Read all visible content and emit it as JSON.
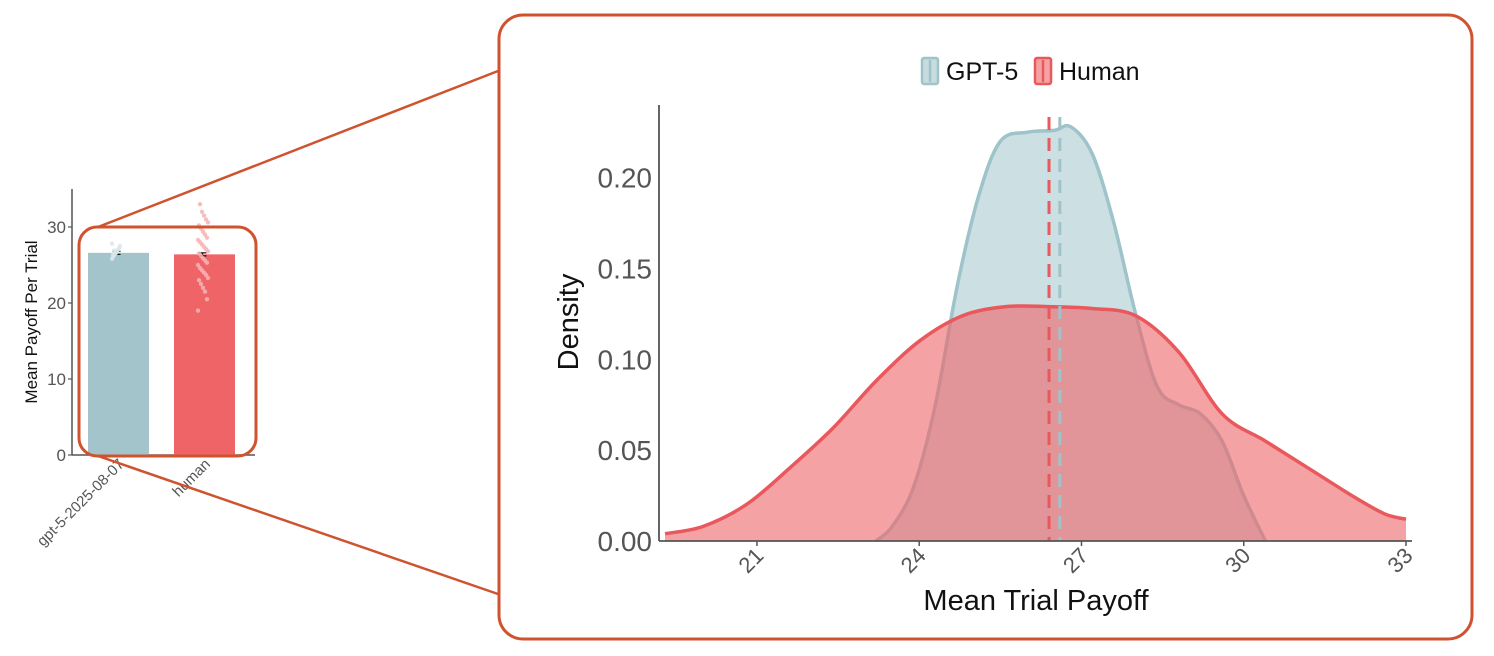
{
  "colors": {
    "gpt": "#a3c4cb",
    "human": "#ee6467",
    "gpt_line": "#9fc3ca",
    "human_line": "#e8585c",
    "frame": "#cf532f",
    "axis": "#555555",
    "tick_text": "#555555"
  },
  "chart_data": [
    {
      "type": "bar",
      "ylabel": "Mean Payoff Per Trial",
      "xlabel": "",
      "categories": [
        "gpt-5-2025-08-07",
        "human"
      ],
      "values": [
        26.6,
        26.4
      ],
      "errors": [
        0.2,
        0.2
      ],
      "ylim": [
        0,
        35
      ],
      "yticks": [
        "0",
        "10",
        "20",
        "30"
      ],
      "ytick_values": [
        0,
        10,
        20,
        30
      ],
      "gpt_points": [
        25.8,
        26.1,
        26.3,
        26.5,
        26.6,
        26.8,
        27.0,
        27.2,
        27.5,
        27.8,
        26.4,
        26.9
      ],
      "human_points": [
        19,
        20.5,
        21.5,
        22,
        22.5,
        23,
        23.3,
        23.7,
        24,
        24.3,
        24.6,
        25,
        25.3,
        25.6,
        25.9,
        26.2,
        26.5,
        26.8,
        27.1,
        27.4,
        27.7,
        28,
        28.3,
        28.6,
        29,
        29.4,
        29.8,
        30.2,
        30.6,
        31,
        31.5,
        32,
        33
      ]
    },
    {
      "type": "area",
      "title": "",
      "xlabel": "Mean Trial Payoff",
      "ylabel": "Density",
      "xlim": [
        19.3,
        33
      ],
      "ylim": [
        0,
        0.24
      ],
      "xticks": [
        "21",
        "24",
        "27",
        "30",
        "33"
      ],
      "xtick_values": [
        21,
        24,
        27,
        30,
        33
      ],
      "yticks": [
        "0.00",
        "0.05",
        "0.10",
        "0.15",
        "0.20"
      ],
      "ytick_values": [
        0,
        0.05,
        0.1,
        0.15,
        0.2
      ],
      "legend": [
        "GPT-5",
        "Human"
      ],
      "series": [
        {
          "name": "GPT-5",
          "x": [
            23.2,
            23.5,
            23.9,
            24.3,
            24.7,
            25.1,
            25.5,
            26.0,
            26.5,
            26.8,
            27.2,
            27.6,
            28.0,
            28.4,
            28.8,
            29.2,
            29.6,
            30.0,
            30.4
          ],
          "y": [
            0.0,
            0.008,
            0.03,
            0.075,
            0.14,
            0.19,
            0.22,
            0.225,
            0.226,
            0.228,
            0.213,
            0.175,
            0.125,
            0.085,
            0.075,
            0.07,
            0.055,
            0.025,
            0.0
          ],
          "mean": 26.6
        },
        {
          "name": "Human",
          "x": [
            19.3,
            20.0,
            20.8,
            21.6,
            22.4,
            23.2,
            24.0,
            24.8,
            25.6,
            26.4,
            27.2,
            28.0,
            28.8,
            29.6,
            30.4,
            31.2,
            32.0,
            32.6,
            33.0
          ],
          "y": [
            0.004,
            0.008,
            0.02,
            0.04,
            0.062,
            0.088,
            0.11,
            0.124,
            0.129,
            0.129,
            0.128,
            0.124,
            0.104,
            0.07,
            0.055,
            0.04,
            0.025,
            0.015,
            0.012
          ],
          "mean": 26.4
        }
      ]
    }
  ]
}
